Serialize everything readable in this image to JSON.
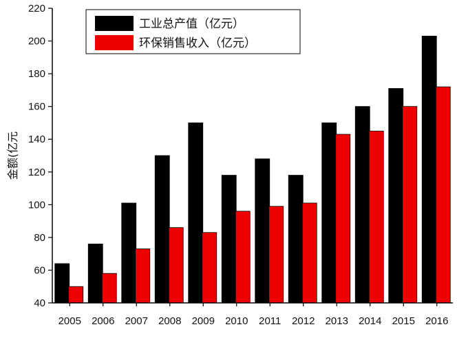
{
  "chart_data": {
    "type": "bar",
    "title": "",
    "xlabel": "",
    "ylabel": "金额(亿元",
    "categories": [
      "2005",
      "2006",
      "2007",
      "2008",
      "2009",
      "2010",
      "2011",
      "2012",
      "2013",
      "2014",
      "2015",
      "2016"
    ],
    "ylim": [
      40,
      220
    ],
    "yticks": [
      40,
      60,
      80,
      100,
      120,
      140,
      160,
      180,
      200,
      220
    ],
    "grid": false,
    "legend_position": "top-left",
    "series": [
      {
        "name": "工业总产值（亿元）",
        "color": "#000000",
        "values": [
          64,
          76,
          101,
          130,
          150,
          118,
          128,
          118,
          150,
          160,
          171,
          203
        ]
      },
      {
        "name": "环保销售收入（亿元）",
        "color": "#ee0000",
        "values": [
          50,
          58,
          73,
          86,
          83,
          96,
          99,
          101,
          143,
          145,
          160,
          172
        ]
      }
    ]
  }
}
